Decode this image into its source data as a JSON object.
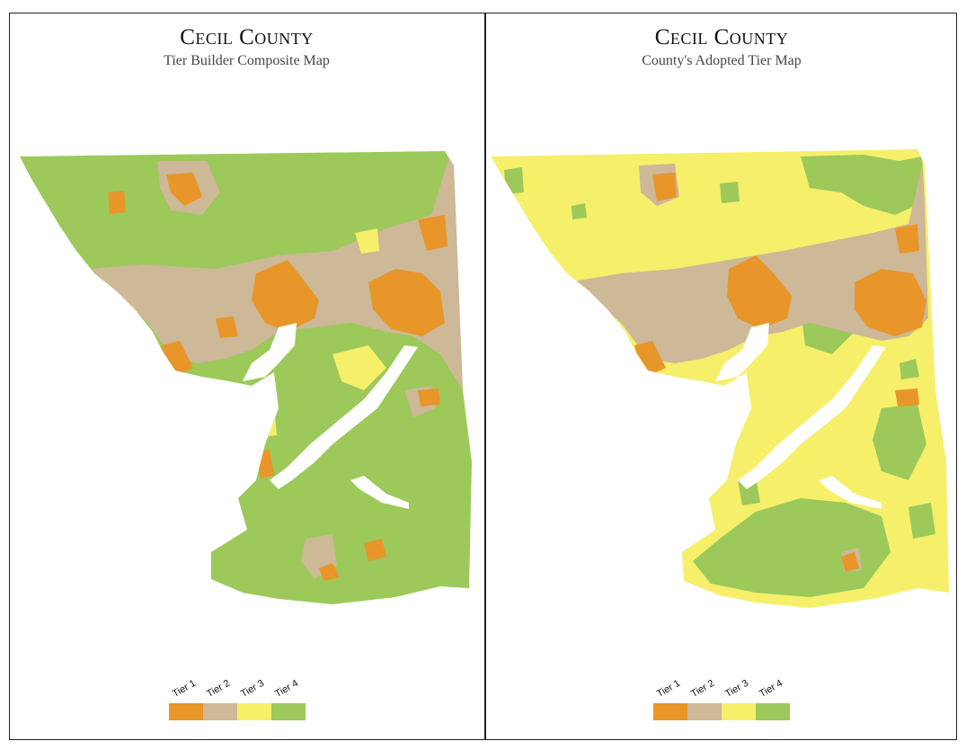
{
  "left_panel": {
    "title": "Cecil County",
    "subtitle": "Tier Builder Composite Map"
  },
  "right_panel": {
    "title": "Cecil County",
    "subtitle": "County's Adopted Tier Map"
  },
  "legend": [
    {
      "label": "Tier 1",
      "color": "#e8962a"
    },
    {
      "label": "Tier 2",
      "color": "#cdb898"
    },
    {
      "label": "Tier 3",
      "color": "#f5ef6a"
    },
    {
      "label": "Tier 4",
      "color": "#9cc95a"
    }
  ]
}
